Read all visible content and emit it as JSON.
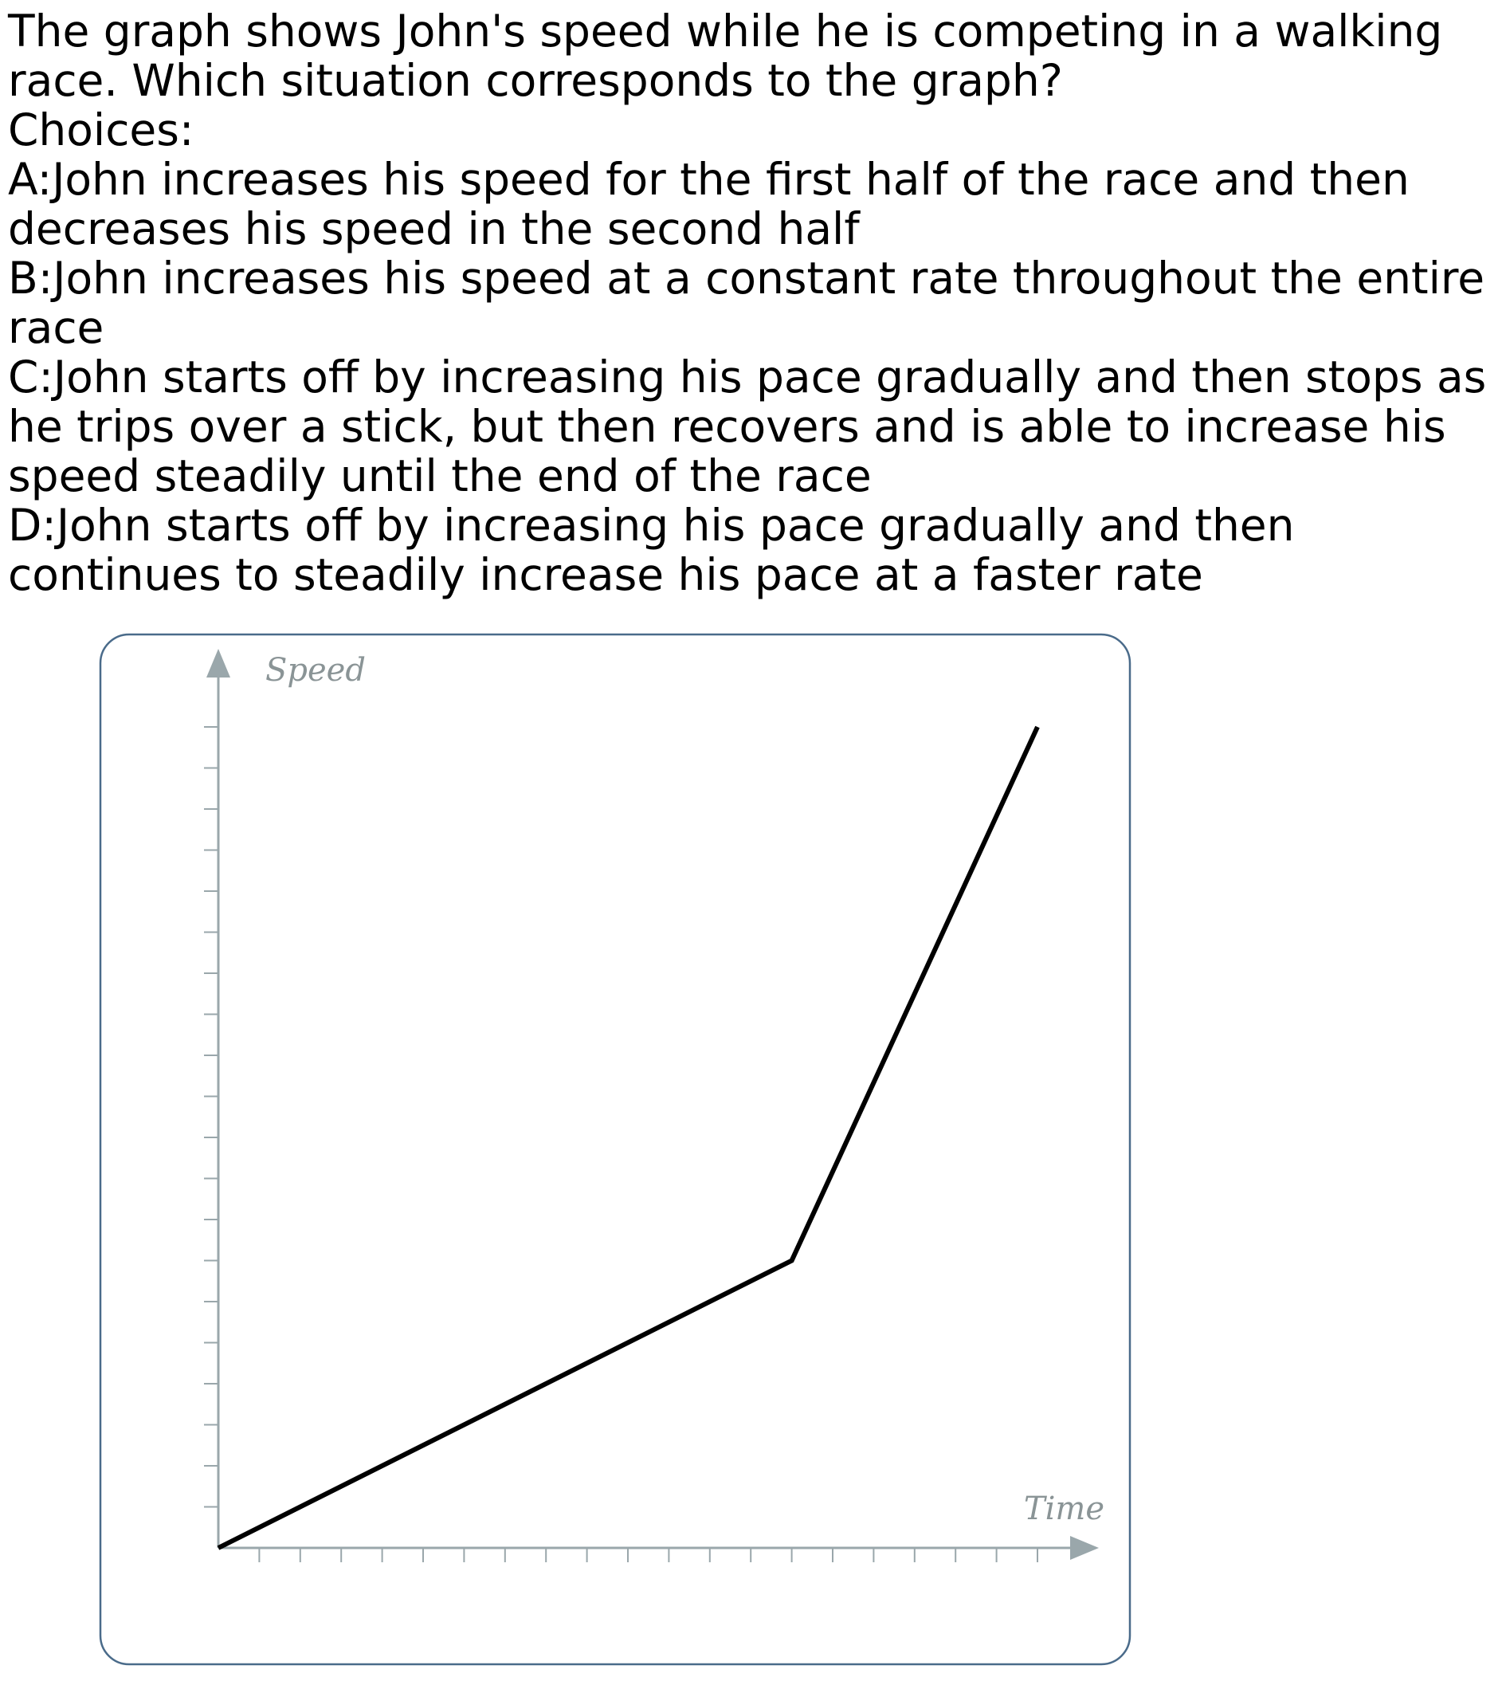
{
  "question": {
    "lines": [
      "The graph shows John's speed while he is competing in a walking",
      "race. Which situation corresponds to the graph?",
      "Choices:",
      "A:John increases his speed for the first half of the race and then",
      "decreases his speed in the second half",
      "B:John increases his speed at a constant rate throughout the entire",
      "race",
      "C:John starts off by increasing his pace gradually and then stops as",
      "he trips over a stick, but then recovers and is able to increase his",
      "speed steadily until the end of the race",
      "D:John starts off by increasing his pace gradually and then",
      "continues to steadily increase his pace at a faster rate"
    ]
  },
  "colors": {
    "frame": "#4a6b8a",
    "axis": "#9aa7ab",
    "label": "#8a9496",
    "line": "#000000"
  },
  "chart_data": {
    "type": "line",
    "title": "",
    "xlabel": "Time",
    "ylabel": "Speed",
    "xlim": [
      0,
      22
    ],
    "ylim": [
      0,
      20
    ],
    "x_ticks": 20,
    "y_ticks": 20,
    "tick_labels": false,
    "grid": false,
    "legend": "none",
    "series": [
      {
        "values": [
          [
            0,
            0
          ],
          [
            14,
            7
          ],
          [
            20,
            20
          ]
        ]
      }
    ]
  }
}
